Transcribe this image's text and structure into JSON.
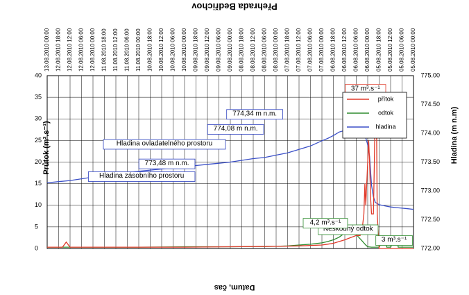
{
  "chart_data": {
    "type": "line",
    "title": "Přehrada Bedřichov",
    "xlabel": "Datum, čas",
    "ylabel_left": "Průtok (m³.s⁻¹)",
    "ylabel_right": "Hladina (m n.m)",
    "x_ticks": [
      "05.08.2010 00:00",
      "05.08.2010 06:00",
      "05.08.2010 12:00",
      "05.08.2010 18:00",
      "06.08.2010 00:00",
      "06.08.2010 06:00",
      "06.08.2010 12:00",
      "06.08.2010 18:00",
      "07.08.2010 00:00",
      "07.08.2010 06:00",
      "07.08.2010 12:00",
      "07.08.2010 18:00",
      "08.08.2010 00:00",
      "08.08.2010 06:00",
      "08.08.2010 12:00",
      "08.08.2010 18:00",
      "09.08.2010 00:00",
      "09.08.2010 06:00",
      "09.08.2010 12:00",
      "09.08.2010 18:00",
      "10.08.2010 00:00",
      "10.08.2010 06:00",
      "10.08.2010 12:00",
      "10.08.2010 18:00",
      "11.08.2010 00:00",
      "11.08.2010 06:00",
      "11.08.2010 12:00",
      "11.08.2010 18:00",
      "12.08.2010 00:00",
      "12.08.2010 06:00",
      "12.08.2010 12:00",
      "12.08.2010 18:00",
      "13.08.2010 00:00"
    ],
    "left_axis": {
      "ylim": [
        0,
        40
      ],
      "ticks": [
        "0",
        "5",
        "10",
        "15",
        "20",
        "25",
        "30",
        "35",
        "40"
      ]
    },
    "right_axis": {
      "ylim": [
        772.0,
        775.0
      ],
      "ticks": [
        "772.00",
        "772.50",
        "773.00",
        "773.50",
        "774.00",
        "774.50",
        "775.00"
      ]
    },
    "grid": true,
    "legend_position": "top-right",
    "series": [
      {
        "name": "hladina",
        "axis": "right",
        "color": "#3a4fc7",
        "x": [
          0,
          3,
          6,
          9,
          12,
          15,
          18,
          20,
          21,
          22,
          23,
          24,
          25,
          26,
          27,
          28,
          30,
          33,
          36,
          39,
          42,
          45,
          48,
          54,
          60,
          66,
          72,
          78,
          84,
          90,
          96,
          102,
          108,
          114,
          120,
          126,
          132,
          138,
          144,
          150,
          156,
          162,
          168,
          174,
          180,
          186,
          192
        ],
        "y": [
          772.68,
          772.69,
          772.7,
          772.71,
          772.72,
          772.74,
          772.76,
          772.8,
          772.9,
          773.1,
          773.6,
          773.8,
          773.92,
          773.96,
          773.99,
          774.02,
          774.05,
          774.08,
          774.05,
          774.02,
          773.96,
          773.91,
          773.87,
          773.78,
          773.72,
          773.66,
          773.62,
          773.58,
          773.56,
          773.53,
          773.5,
          773.48,
          773.46,
          773.44,
          773.42,
          773.4,
          773.38,
          773.36,
          773.34,
          773.32,
          773.3,
          773.27,
          773.24,
          773.21,
          773.18,
          773.16,
          773.14
        ]
      },
      {
        "name": "odtok",
        "axis": "left",
        "color": "#2e8b2e",
        "x": [
          0,
          6,
          8,
          8.5,
          10,
          12,
          14,
          14.5,
          16,
          18,
          20,
          22,
          24,
          25,
          27,
          30,
          33,
          36,
          39,
          42,
          45,
          48,
          54,
          60,
          66,
          72,
          96,
          120,
          144,
          168,
          192
        ],
        "y": [
          0.3,
          0.3,
          0.3,
          2,
          2,
          0.3,
          0.3,
          2,
          2,
          0.3,
          0.3,
          0.3,
          0.4,
          0.8,
          1.8,
          3.2,
          4.2,
          3.6,
          2.6,
          2.0,
          1.6,
          1.3,
          1.0,
          0.8,
          0.6,
          0.5,
          0.4,
          0.4,
          0.3,
          0.3,
          0.3
        ]
      },
      {
        "name": "přítok",
        "axis": "left",
        "color": "#e03a2a",
        "x": [
          0,
          18,
          19,
          19.5,
          20,
          20.5,
          21,
          22,
          22.5,
          23,
          23.5,
          24,
          25,
          25.5,
          26,
          27,
          28,
          30,
          33,
          36,
          39,
          42,
          45,
          48,
          60,
          72,
          96,
          120,
          144,
          168,
          180,
          182,
          184,
          186,
          192
        ],
        "y": [
          0,
          0,
          8,
          37,
          37,
          20,
          8,
          8,
          12,
          20,
          25,
          20,
          10,
          15,
          8,
          4,
          3,
          3,
          2.5,
          2,
          1.6,
          1.2,
          1,
          0.8,
          0.6,
          0.5,
          0.4,
          0.3,
          0.3,
          0.3,
          0.3,
          1.5,
          0.3,
          0.3,
          0.3
        ]
      }
    ],
    "annotations": [
      {
        "text": "3 m³.s⁻¹",
        "series_x": 2,
        "y": 2,
        "axis": "left"
      },
      {
        "text": "Neškodný odtok",
        "series_x": 20,
        "y": 4.5,
        "axis": "left"
      },
      {
        "text": "4,2 m³.s⁻¹",
        "series_x": 36,
        "y": 6,
        "axis": "left"
      },
      {
        "text": "37 m³.s⁻¹",
        "series_x": 16,
        "y": 37,
        "axis": "left"
      },
      {
        "text": "774,34 m n.m.",
        "series_x": 70,
        "y": 774.34,
        "axis": "right"
      },
      {
        "text": "774,08 m n.m.",
        "series_x": 80,
        "y": 774.08,
        "axis": "right"
      },
      {
        "text": "773,48 m n.m.",
        "series_x": 116,
        "y": 773.48,
        "axis": "right"
      },
      {
        "text": "Hladina ovladatelného prostoru",
        "series_x": 100,
        "y": 773.82,
        "axis": "right"
      },
      {
        "text": "Hladina zásobního prostoru",
        "series_x": 116,
        "y": 773.26,
        "axis": "right"
      }
    ]
  }
}
